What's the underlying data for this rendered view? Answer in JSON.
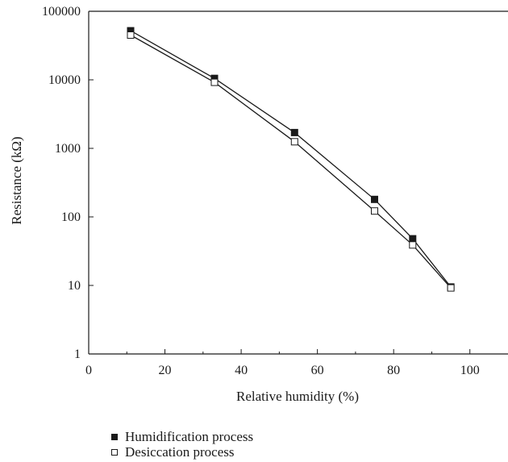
{
  "chart_data": {
    "type": "line",
    "xlabel": "Relative humidity (%)",
    "ylabel": "Resistance (kΩ)",
    "xlim": [
      0,
      110
    ],
    "ylim": [
      1,
      100000
    ],
    "yscale": "log",
    "xticks": [
      0,
      20,
      40,
      60,
      80,
      100
    ],
    "xtick_labels": [
      "0",
      "20",
      "40",
      "60",
      "80",
      "100"
    ],
    "yticks": [
      1,
      10,
      100,
      1000,
      10000,
      100000
    ],
    "ytick_labels": [
      "1",
      "10",
      "100",
      "1000",
      "10000",
      "100000"
    ],
    "grid": false,
    "legend_position": "bottom-left",
    "series": [
      {
        "name": "Humidification process",
        "marker": "filled-square",
        "color": "#1a1a1a",
        "x": [
          11,
          33,
          54,
          75,
          85,
          95
        ],
        "y": [
          52000,
          10500,
          1700,
          180,
          48,
          9.5
        ]
      },
      {
        "name": "Desiccation process",
        "marker": "open-square",
        "color": "#1a1a1a",
        "x": [
          11,
          33,
          54,
          75,
          85,
          95
        ],
        "y": [
          45000,
          9200,
          1250,
          122,
          39,
          9.2
        ]
      }
    ]
  }
}
